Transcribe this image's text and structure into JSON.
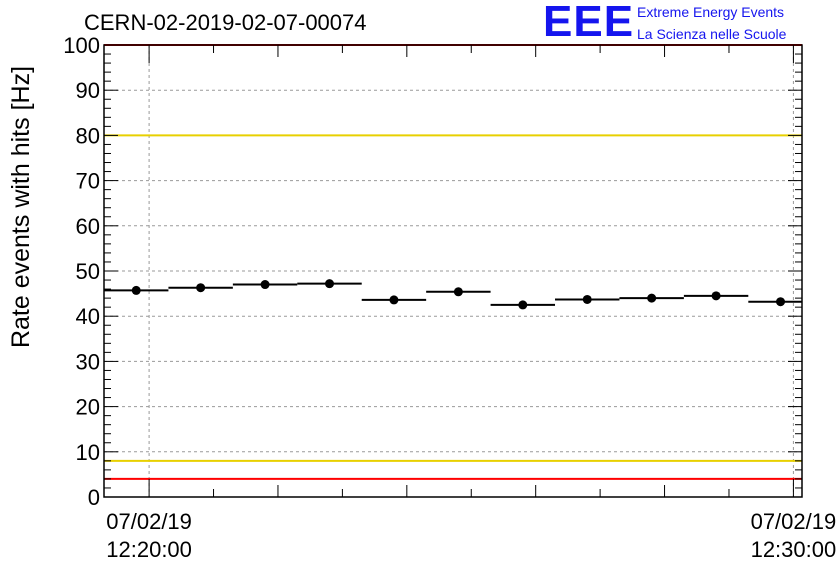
{
  "logo": {
    "mark": "EEE",
    "line1": "Extreme Energy Events",
    "line2": "La Scienza nelle Scuole"
  },
  "colors": {
    "upper_threshold": "#e8d000",
    "lower_threshold": "#e8d000",
    "limit_line": "#ff0000",
    "logo": "#1515ee",
    "grid": "#9a9a9a",
    "points": "#000000"
  },
  "chart_data": {
    "type": "scatter",
    "title": "CERN-02-2019-02-07-00074",
    "ylabel": "Rate events with hits [Hz]",
    "xlabel": "",
    "ylim": [
      0,
      100
    ],
    "yticks": [
      0,
      10,
      20,
      30,
      40,
      50,
      60,
      70,
      80,
      90,
      100
    ],
    "xticks": [
      {
        "date": "07/02/19",
        "time": "12:20:00"
      },
      {
        "date": "07/02/19",
        "time": "12:30:00"
      }
    ],
    "xlim": [
      "12:19:18",
      "12:30:08"
    ],
    "grid": true,
    "bin_width_seconds": 60,
    "points": [
      {
        "x": "12:19:48",
        "y": 45.7
      },
      {
        "x": "12:20:48",
        "y": 46.3
      },
      {
        "x": "12:21:48",
        "y": 47.0
      },
      {
        "x": "12:22:48",
        "y": 47.2
      },
      {
        "x": "12:23:48",
        "y": 43.6
      },
      {
        "x": "12:24:48",
        "y": 45.4
      },
      {
        "x": "12:25:48",
        "y": 42.5
      },
      {
        "x": "12:26:48",
        "y": 43.7
      },
      {
        "x": "12:27:48",
        "y": 44.0
      },
      {
        "x": "12:28:48",
        "y": 44.5
      },
      {
        "x": "12:29:48",
        "y": 43.2
      }
    ],
    "reference_lines": [
      {
        "y": 100,
        "color": "#ff0000"
      },
      {
        "y": 80,
        "color": "#e8d000"
      },
      {
        "y": 8,
        "color": "#e8d000"
      },
      {
        "y": 4,
        "color": "#ff0000"
      }
    ]
  }
}
